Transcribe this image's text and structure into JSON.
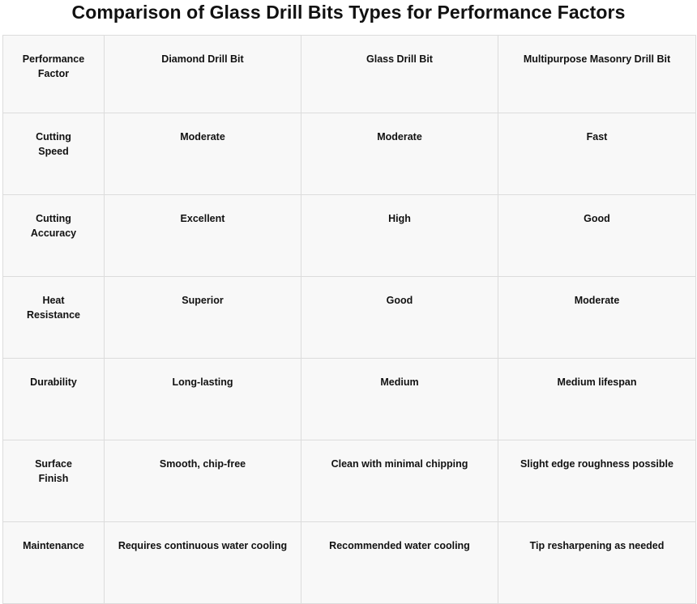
{
  "title": "Comparison of Glass Drill Bits Types for Performance Factors",
  "table": {
    "headers": [
      "Performance Factor",
      "Diamond Drill Bit",
      "Glass Drill Bit",
      "Multipurpose Masonry Drill Bit"
    ],
    "rows": [
      [
        "Cutting Speed",
        "Moderate",
        "Moderate",
        "Fast"
      ],
      [
        "Cutting Accuracy",
        "Excellent",
        "High",
        "Good"
      ],
      [
        "Heat Resistance",
        "Superior",
        "Good",
        "Moderate"
      ],
      [
        "Durability",
        "Long-lasting",
        "Medium",
        "Medium lifespan"
      ],
      [
        "Surface Finish",
        "Smooth, chip-free",
        "Clean with minimal chipping",
        "Slight edge roughness possible"
      ],
      [
        "Maintenance",
        "Requires continuous water cooling",
        "Recommended water cooling",
        "Tip resharpening as needed"
      ]
    ]
  }
}
